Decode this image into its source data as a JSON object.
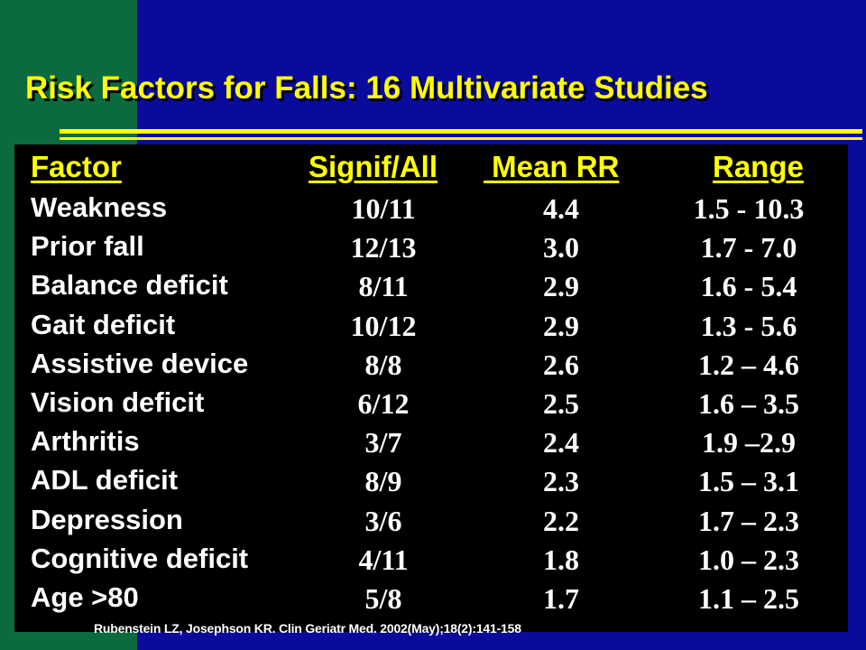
{
  "title": "Risk Factors for Falls: 16 Multivariate Studies",
  "table": {
    "headers": {
      "factor": "Factor",
      "signif": "Signif/All",
      "mean": " Mean RR",
      "range": "Range"
    },
    "rows": [
      {
        "factor": "Weakness",
        "signif": "10/11",
        "mean": "4.4",
        "range": "1.5 - 10.3"
      },
      {
        "factor": "Prior fall",
        "signif": "12/13",
        "mean": "3.0",
        "range": "1.7 - 7.0"
      },
      {
        "factor": "Balance deficit",
        "signif": "8/11",
        "mean": "2.9",
        "range": "1.6 - 5.4"
      },
      {
        "factor": "Gait deficit",
        "signif": "10/12",
        "mean": "2.9",
        "range": "1.3 - 5.6"
      },
      {
        "factor": "Assistive device",
        "signif": "8/8",
        "mean": "2.6",
        "range": "1.2 – 4.6"
      },
      {
        "factor": "Vision deficit",
        "signif": "6/12",
        "mean": "2.5",
        "range": "1.6 – 3.5"
      },
      {
        "factor": "Arthritis",
        "signif": "3/7",
        "mean": "2.4",
        "range": "1.9 –2.9"
      },
      {
        "factor": "ADL deficit",
        "signif": "8/9",
        "mean": "2.3",
        "range": "1.5 – 3.1"
      },
      {
        "factor": "Depression",
        "signif": "3/6",
        "mean": "2.2",
        "range": "1.7 – 2.3"
      },
      {
        "factor": "Cognitive deficit",
        "signif": "4/11",
        "mean": "1.8",
        "range": "1.0 – 2.3"
      },
      {
        "factor": "Age >80",
        "signif": "5/8",
        "mean": "1.7",
        "range": "1.1 – 2.5"
      }
    ]
  },
  "citation": "Rubenstein LZ, Josephson KR. Clin Geriatr Med. 2002(May);18(2):141-158",
  "colors": {
    "title": "#ffff00",
    "header": "#ffff00",
    "text": "#ffffff",
    "background_blue": "#0a0a9c",
    "background_green": "#0b6b3f",
    "panel": "#000000"
  }
}
